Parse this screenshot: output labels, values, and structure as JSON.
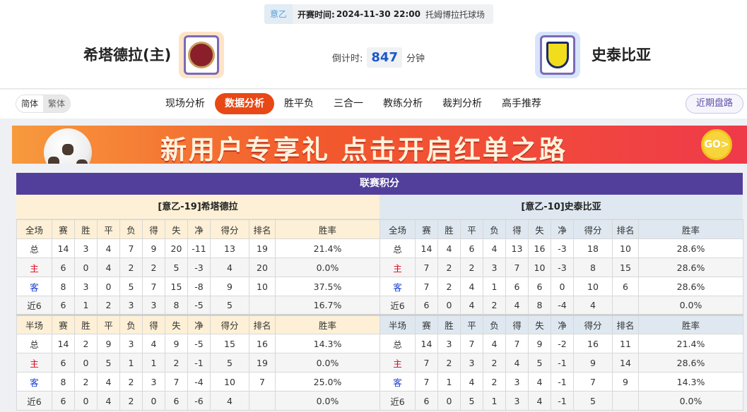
{
  "match": {
    "league": "意乙",
    "kickoff_label": "开赛时间:",
    "kickoff": "2024-11-30 22:00",
    "venue": "托姆博拉托球场"
  },
  "home": {
    "name": "希塔德拉(主)",
    "logo_bg": "#fde4c6"
  },
  "away": {
    "name": "史泰比亚",
    "logo_bg": "#d7e4fb"
  },
  "countdown": {
    "label": "倒计时:",
    "value": "847",
    "unit": "分钟"
  },
  "lang": {
    "simplified": "简体",
    "traditional": "繁体"
  },
  "tabs": [
    {
      "label": "现场分析"
    },
    {
      "label": "数据分析",
      "active": true
    },
    {
      "label": "胜平负"
    },
    {
      "label": "三合一"
    },
    {
      "label": "教练分析"
    },
    {
      "label": "裁判分析"
    },
    {
      "label": "高手推荐"
    }
  ],
  "recent_button": "近期盘路",
  "banner": {
    "text": "新用户专享礼 点击开启红单之路",
    "go": "GO>"
  },
  "standings": {
    "title": "联赛积分",
    "columns_full": [
      "全场",
      "赛",
      "胜",
      "平",
      "负",
      "得",
      "失",
      "净",
      "得分",
      "排名",
      "胜率"
    ],
    "columns_half": [
      "半场",
      "赛",
      "胜",
      "平",
      "负",
      "得",
      "失",
      "净",
      "得分",
      "排名",
      "胜率"
    ],
    "teams": [
      {
        "title": "[意乙-19]希塔德拉",
        "full": [
          [
            "总",
            "14",
            "3",
            "4",
            "7",
            "9",
            "20",
            "-11",
            "13",
            "19",
            "21.4%"
          ],
          [
            "主",
            "6",
            "0",
            "4",
            "2",
            "2",
            "5",
            "-3",
            "4",
            "20",
            "0.0%"
          ],
          [
            "客",
            "8",
            "3",
            "0",
            "5",
            "7",
            "15",
            "-8",
            "9",
            "10",
            "37.5%"
          ],
          [
            "近6",
            "6",
            "1",
            "2",
            "3",
            "3",
            "8",
            "-5",
            "5",
            "",
            "16.7%"
          ]
        ],
        "half": [
          [
            "总",
            "14",
            "2",
            "9",
            "3",
            "4",
            "9",
            "-5",
            "15",
            "16",
            "14.3%"
          ],
          [
            "主",
            "6",
            "0",
            "5",
            "1",
            "1",
            "2",
            "-1",
            "5",
            "19",
            "0.0%"
          ],
          [
            "客",
            "8",
            "2",
            "4",
            "2",
            "3",
            "7",
            "-4",
            "10",
            "7",
            "25.0%"
          ],
          [
            "近6",
            "6",
            "0",
            "4",
            "2",
            "0",
            "6",
            "-6",
            "4",
            "",
            "0.0%"
          ]
        ]
      },
      {
        "title": "[意乙-10]史泰比亚",
        "full": [
          [
            "总",
            "14",
            "4",
            "6",
            "4",
            "13",
            "16",
            "-3",
            "18",
            "10",
            "28.6%"
          ],
          [
            "主",
            "7",
            "2",
            "2",
            "3",
            "7",
            "10",
            "-3",
            "8",
            "15",
            "28.6%"
          ],
          [
            "客",
            "7",
            "2",
            "4",
            "1",
            "6",
            "6",
            "0",
            "10",
            "6",
            "28.6%"
          ],
          [
            "近6",
            "6",
            "0",
            "4",
            "2",
            "4",
            "8",
            "-4",
            "4",
            "",
            "0.0%"
          ]
        ],
        "half": [
          [
            "总",
            "14",
            "3",
            "7",
            "4",
            "7",
            "9",
            "-2",
            "16",
            "11",
            "21.4%"
          ],
          [
            "主",
            "7",
            "2",
            "3",
            "2",
            "4",
            "5",
            "-1",
            "9",
            "14",
            "28.6%"
          ],
          [
            "客",
            "7",
            "1",
            "4",
            "2",
            "3",
            "4",
            "-1",
            "7",
            "9",
            "14.3%"
          ],
          [
            "近6",
            "6",
            "0",
            "5",
            "1",
            "3",
            "4",
            "-1",
            "5",
            "",
            "0.0%"
          ]
        ]
      }
    ]
  },
  "colors": {
    "accent": "#e84815",
    "purple": "#523f9c",
    "home_red": "#e0001a",
    "away_blue": "#1b3fd2"
  }
}
